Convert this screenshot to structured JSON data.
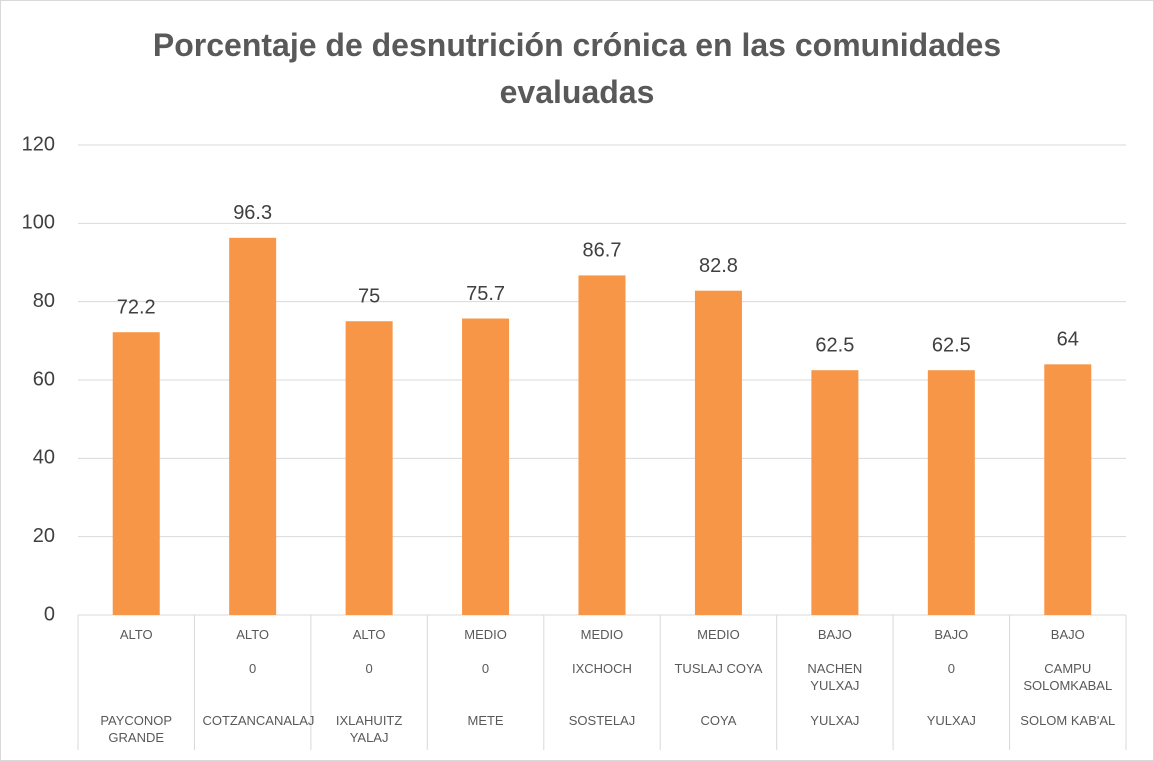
{
  "chart_data": {
    "type": "bar",
    "title": "Porcentaje de desnutrición crónica en las comunidades evaluadas",
    "categories": [
      "PAYCONOP GRANDE",
      "COTZANCANALAJ",
      "IXLAHUITZ YALAJ",
      "METE",
      "SOSTELAJ",
      "COYA",
      "YULXAJ",
      "YULXAJ",
      "SOLOM KAB'AL"
    ],
    "category_level_1": [
      "ALTO",
      "ALTO",
      "ALTO",
      "MEDIO",
      "MEDIO",
      "MEDIO",
      "BAJO",
      "BAJO",
      "BAJO"
    ],
    "category_level_2": [
      null,
      "0",
      "0",
      "0",
      "IXCHOCH",
      "TUSLAJ COYA",
      "NACHEN  YULXAJ",
      "0",
      "CAMPU SOLOMKABAL"
    ],
    "values": [
      72.2,
      96.3,
      75,
      75.7,
      86.7,
      82.8,
      62.5,
      62.5,
      64
    ],
    "color": "#f79646",
    "ylim": [
      0,
      120
    ],
    "yticks": [
      0,
      20,
      40,
      60,
      80,
      100,
      120
    ],
    "grid": true
  }
}
